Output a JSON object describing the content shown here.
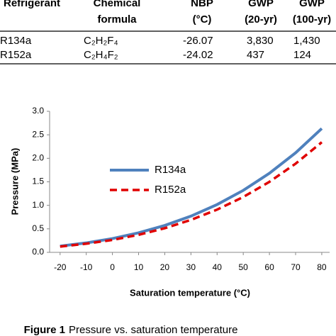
{
  "table": {
    "header": [
      [
        "Refrigerant"
      ],
      [
        "Chemical",
        "formula"
      ],
      [
        "NBP",
        "(°C)"
      ],
      [
        "GWP",
        "(20-yr)"
      ],
      [
        "GWP",
        "(100-yr)"
      ]
    ],
    "rows": [
      [
        "R134a",
        "C₂H₂F₄",
        "-26.07",
        "3,830",
        "1,430"
      ],
      [
        "R152a",
        "C₂H₄F₂",
        "-24.02",
        "437",
        "124"
      ]
    ]
  },
  "chart_data": {
    "type": "line",
    "x": [
      -20,
      -10,
      0,
      10,
      20,
      30,
      40,
      50,
      60,
      70,
      80
    ],
    "series": [
      {
        "name": "R134a",
        "color": "#4f81bd",
        "line_style": "solid",
        "values": [
          0.133,
          0.201,
          0.293,
          0.415,
          0.572,
          0.77,
          1.017,
          1.318,
          1.682,
          2.117,
          2.633
        ]
      },
      {
        "name": "R152a",
        "color": "#e00000",
        "line_style": "dashed",
        "values": [
          0.122,
          0.184,
          0.264,
          0.373,
          0.513,
          0.69,
          0.909,
          1.177,
          1.5,
          1.886,
          2.342
        ]
      }
    ],
    "xlabel": "Saturation temperature (°C)",
    "ylabel": "Pressure (MPa)",
    "xlim": [
      -24,
      83
    ],
    "ylim": [
      0,
      3
    ],
    "xticks": [
      -20,
      -10,
      0,
      10,
      20,
      30,
      40,
      50,
      60,
      70,
      80
    ],
    "yticks": [
      {
        "value": 0,
        "label": "0.0"
      },
      0.5,
      {
        "value": 1,
        "label": "1.0"
      },
      1.5,
      {
        "value": 2,
        "label": "2.0"
      },
      2.5,
      {
        "value": 3,
        "label": "3.0"
      }
    ],
    "grid": false
  },
  "caption": {
    "label": "Figure 1",
    "text": "Pressure vs. saturation temperature"
  }
}
